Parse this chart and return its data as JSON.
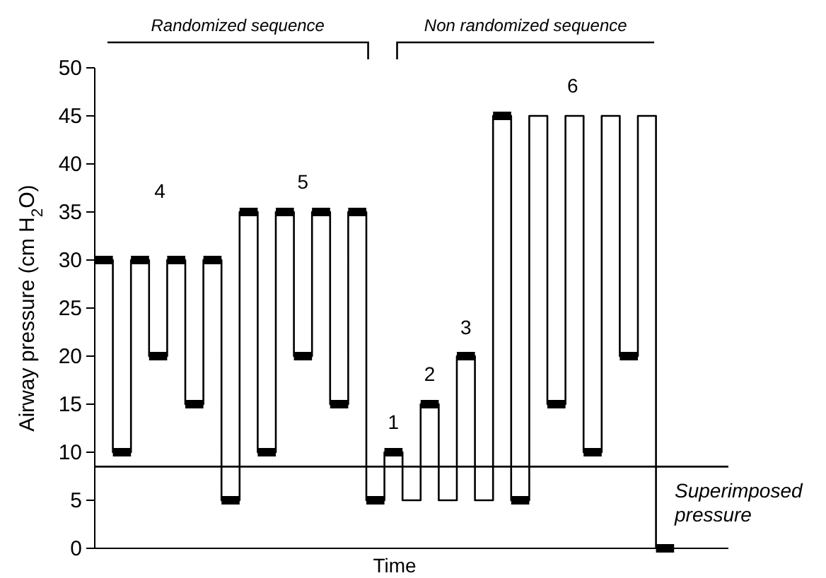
{
  "chart_data": {
    "type": "step",
    "xlabel": "Time",
    "ylabel": "Airway pressure (cm H$_{2}$O)",
    "categories": [
      null,
      null,
      null,
      null,
      null,
      null,
      null,
      null,
      null,
      null,
      null,
      null,
      null,
      null,
      null,
      null,
      null,
      null,
      null,
      null,
      null,
      null,
      null,
      null,
      null,
      null,
      null,
      null,
      null,
      null,
      null,
      null
    ],
    "ylim": [
      0,
      50
    ],
    "yticks": [
      0,
      5,
      10,
      15,
      20,
      25,
      30,
      35,
      40,
      45,
      50
    ],
    "tick_labels": "y",
    "series": [
      {
        "color": "#000000",
        "values": [
          30,
          10,
          30,
          20,
          30,
          15,
          30,
          5,
          35,
          10,
          35,
          20,
          35,
          15,
          35,
          5,
          10,
          5,
          15,
          5,
          20,
          5,
          45,
          5,
          45,
          15,
          45,
          10,
          45,
          20,
          45,
          0
        ]
      },
      {
        "type": "scatter",
        "color": "#000000",
        "marker": "square",
        "values": [
          30,
          10,
          30,
          20,
          30,
          15,
          30,
          5,
          35,
          10,
          35,
          20,
          35,
          15,
          35,
          5,
          10,
          null,
          15,
          null,
          20,
          null,
          45,
          5,
          null,
          15,
          null,
          10,
          null,
          20,
          null,
          0
        ]
      }
    ],
    "ref_lines": [
      {
        "axis": "y",
        "value": 8.5,
        "label": "Superimposed pressure",
        "color": "#000000"
      }
    ],
    "annotations": [
      "Randomized sequence",
      "Non randomized sequence",
      "4",
      "5",
      "1",
      "2",
      "3",
      "6"
    ]
  }
}
